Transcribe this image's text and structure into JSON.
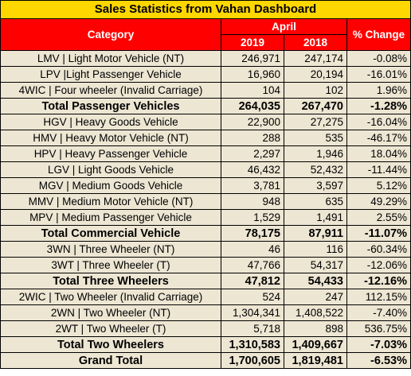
{
  "title": "Sales Statistics from Vahan Dashboard",
  "header": {
    "category": "Category",
    "month": "April",
    "year_a": "2019",
    "year_b": "2018",
    "change": "% Change"
  },
  "rows": [
    {
      "category": "LMV | Light Motor Vehicle (NT)",
      "y2019": "246,971",
      "y2018": "247,174",
      "change": "-0.08%",
      "kind": "item"
    },
    {
      "category": "LPV |Light Passenger Vehicle",
      "y2019": "16,960",
      "y2018": "20,194",
      "change": "-16.01%",
      "kind": "item"
    },
    {
      "category": "4WIC | Four wheeler (Invalid Carriage)",
      "y2019": "104",
      "y2018": "102",
      "change": "1.96%",
      "kind": "item"
    },
    {
      "category": "Total Passenger Vehicles",
      "y2019": "264,035",
      "y2018": "267,470",
      "change": "-1.28%",
      "kind": "total"
    },
    {
      "category": "HGV | Heavy Goods Vehicle",
      "y2019": "22,900",
      "y2018": "27,275",
      "change": "-16.04%",
      "kind": "item"
    },
    {
      "category": "HMV | Heavy Motor Vehicle (NT)",
      "y2019": "288",
      "y2018": "535",
      "change": "-46.17%",
      "kind": "item"
    },
    {
      "category": "HPV | Heavy Passenger Vehicle",
      "y2019": "2,297",
      "y2018": "1,946",
      "change": "18.04%",
      "kind": "item"
    },
    {
      "category": "LGV | Light Goods Vehicle",
      "y2019": "46,432",
      "y2018": "52,432",
      "change": "-11.44%",
      "kind": "item"
    },
    {
      "category": "MGV | Medium Goods Vehicle",
      "y2019": "3,781",
      "y2018": "3,597",
      "change": "5.12%",
      "kind": "item"
    },
    {
      "category": "MMV |  Medium Motor Vehicle (NT)",
      "y2019": "948",
      "y2018": "635",
      "change": "49.29%",
      "kind": "item"
    },
    {
      "category": "MPV | Medium Passenger Vehicle",
      "y2019": "1,529",
      "y2018": "1,491",
      "change": "2.55%",
      "kind": "item"
    },
    {
      "category": "Total Commercial Vehicle",
      "y2019": "78,175",
      "y2018": "87,911",
      "change": "-11.07%",
      "kind": "total"
    },
    {
      "category": "3WN | Three Wheeler (NT)",
      "y2019": "46",
      "y2018": "116",
      "change": "-60.34%",
      "kind": "item"
    },
    {
      "category": "3WT | Three Wheeler (T)",
      "y2019": "47,766",
      "y2018": "54,317",
      "change": "-12.06%",
      "kind": "item"
    },
    {
      "category": "Total Three Wheelers",
      "y2019": "47,812",
      "y2018": "54,433",
      "change": "-12.16%",
      "kind": "total"
    },
    {
      "category": "2WIC | Two Wheeler (Invalid Carriage)",
      "y2019": "524",
      "y2018": "247",
      "change": "112.15%",
      "kind": "item"
    },
    {
      "category": "2WN | Two Wheeler (NT)",
      "y2019": "1,304,341",
      "y2018": "1,408,522",
      "change": "-7.40%",
      "kind": "item"
    },
    {
      "category": "2WT | Two Wheeler (T)",
      "y2019": "5,718",
      "y2018": "898",
      "change": "536.75%",
      "kind": "item"
    },
    {
      "category": "Total Two Wheelers",
      "y2019": "1,310,583",
      "y2018": "1,409,667",
      "change": "-7.03%",
      "kind": "total"
    },
    {
      "category": "Grand Total",
      "y2019": "1,700,605",
      "y2018": "1,819,481",
      "change": "-6.53%",
      "kind": "grand"
    }
  ],
  "colors": {
    "title_bg": "#ffd700",
    "header_bg": "#ff0000",
    "header_text": "#ffffff",
    "body_bg": "#ede6d3",
    "border": "#000000"
  }
}
